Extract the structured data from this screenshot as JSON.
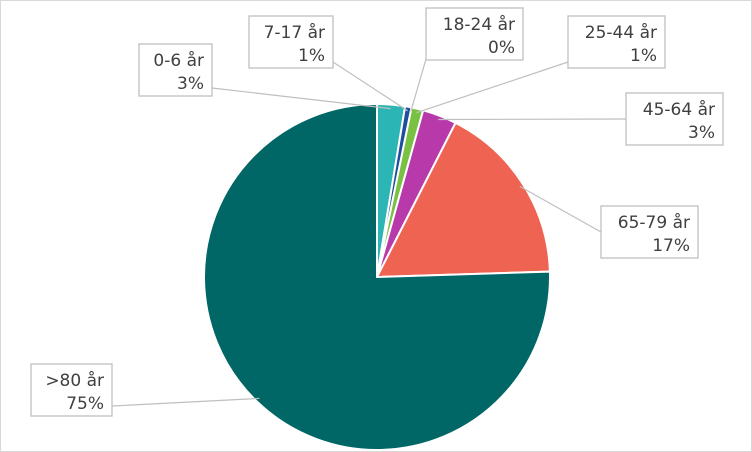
{
  "chart_data": {
    "type": "pie",
    "title": "",
    "slices": [
      {
        "label": "0-6 år",
        "value_label": "3%",
        "value": 2.6,
        "color": "#2cb5b5"
      },
      {
        "label": "7-17 år",
        "value_label": "1%",
        "value": 0.6,
        "color": "#1f4e9c"
      },
      {
        "label": "18-24 år",
        "value_label": "0%",
        "value": 0.0,
        "color": "#ffffff"
      },
      {
        "label": "25-44 år",
        "value_label": "1%",
        "value": 1.1,
        "color": "#79c142"
      },
      {
        "label": "45-64 år",
        "value_label": "3%",
        "value": 3.2,
        "color": "#b83aaa"
      },
      {
        "label": "65-79 år",
        "value_label": "17%",
        "value": 17.0,
        "color": "#ee6352"
      },
      {
        "label": ">80 år",
        "value_label": "75%",
        "value": 75.5,
        "color": "#006666"
      }
    ],
    "legend": "none",
    "start_angle": "12 o'clock, clockwise"
  }
}
